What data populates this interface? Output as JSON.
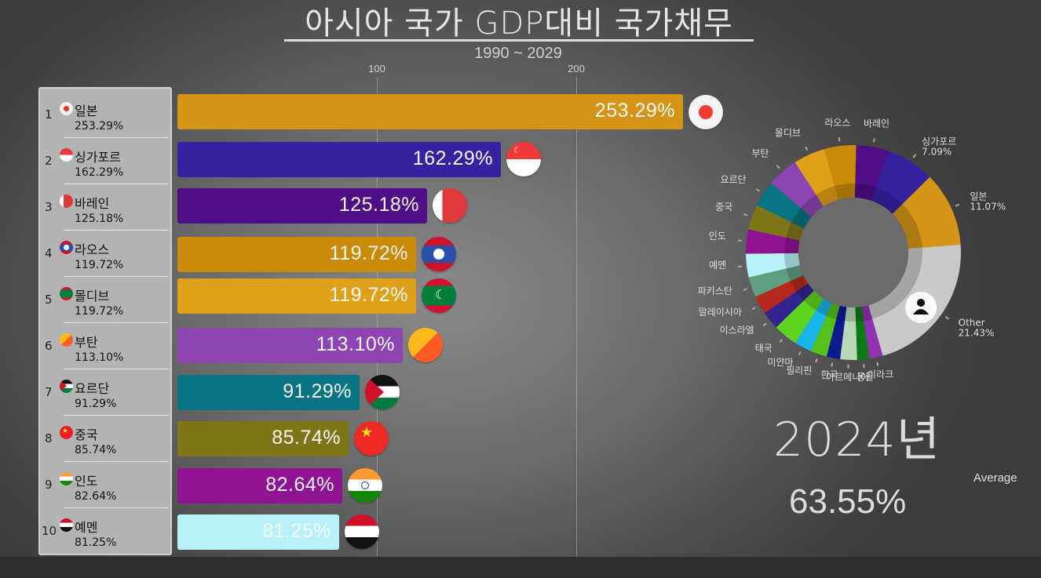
{
  "header": {
    "title": "아시아 국가 GDP대비 국가채무",
    "subtitle": "1990 ~ 2029"
  },
  "axis": {
    "ticks": [
      {
        "label": "100",
        "value": 100
      },
      {
        "label": "200",
        "value": 200
      }
    ]
  },
  "year_display": "2024년",
  "average": {
    "label": "Average",
    "value": "63.55%"
  },
  "ranking": [
    {
      "rank": "1",
      "name": "일본",
      "value_text": "253.29%",
      "value": 253.29,
      "color": "#d49416",
      "flag": "japan"
    },
    {
      "rank": "2",
      "name": "싱가포르",
      "value_text": "162.29%",
      "value": 162.29,
      "color": "#35229f",
      "flag": "singapore"
    },
    {
      "rank": "3",
      "name": "바레인",
      "value_text": "125.18%",
      "value": 125.18,
      "color": "#4f0d86",
      "flag": "bahrain"
    },
    {
      "rank": "4",
      "name": "라오스",
      "value_text": "119.72%",
      "value": 119.72,
      "color": "#c98b06",
      "flag": "laos"
    },
    {
      "rank": "5",
      "name": "몰디브",
      "value_text": "119.72%",
      "value": 119.72,
      "color": "#e0a11a",
      "flag": "maldives"
    },
    {
      "rank": "6",
      "name": "부탄",
      "value_text": "113.10%",
      "value": 113.1,
      "color": "#8f44b3",
      "flag": "bhutan"
    },
    {
      "rank": "7",
      "name": "요르단",
      "value_text": "91.29%",
      "value": 91.29,
      "color": "#067482",
      "flag": "jordan"
    },
    {
      "rank": "8",
      "name": "중국",
      "value_text": "85.74%",
      "value": 85.74,
      "color": "#7e7616",
      "flag": "china"
    },
    {
      "rank": "9",
      "name": "인도",
      "value_text": "82.64%",
      "value": 82.64,
      "color": "#8f1493",
      "flag": "india"
    },
    {
      "rank": "10",
      "name": "예멘",
      "value_text": "81.25%",
      "value": 81.25,
      "color": "#b8f2f8",
      "flag": "yemen"
    }
  ],
  "donut": {
    "labels_with_share": [
      {
        "name": "싱가포르",
        "share": "7.09%"
      },
      {
        "name": "일본",
        "share": "11.07%"
      },
      {
        "name": "Other",
        "share": "21.43%"
      }
    ],
    "segment_labels": [
      "바레인",
      "싱가포르",
      "일본",
      "Other",
      "이라크",
      "몽골",
      "아르메니아",
      "한국",
      "필리핀",
      "미얀마",
      "태국",
      "이스라엘",
      "말레이시아",
      "파키스탄",
      "예멘",
      "인도",
      "중국",
      "요르단",
      "부탄",
      "몰디브",
      "라오스"
    ]
  },
  "chart_data": [
    {
      "type": "bar",
      "title": "아시아 국가 GDP대비 국가채무",
      "subtitle": "1990 ~ 2029",
      "frame_year": "2024년",
      "orientation": "horizontal",
      "categories": [
        "일본",
        "싱가포르",
        "바레인",
        "라오스",
        "몰디브",
        "부탄",
        "요르단",
        "중국",
        "인도",
        "예멘"
      ],
      "values": [
        253.29,
        162.29,
        125.18,
        119.72,
        119.72,
        113.1,
        91.29,
        85.74,
        82.64,
        81.25
      ],
      "unit": "% of GDP",
      "xticks": [
        100,
        200
      ],
      "grid": true,
      "colors": [
        "#d49416",
        "#35229f",
        "#4f0d86",
        "#c98b06",
        "#e0a11a",
        "#8f44b3",
        "#067482",
        "#7e7616",
        "#8f1493",
        "#b8f2f8"
      ]
    },
    {
      "type": "pie",
      "variant": "donut",
      "categories": [
        "바레인",
        "싱가포르",
        "일본",
        "Other",
        "이라크",
        "몽골",
        "아르메니아",
        "한국",
        "필리핀",
        "미얀마",
        "태국",
        "이스라엘",
        "말레이시아",
        "파키스탄",
        "예멘",
        "인도",
        "중국",
        "요르단",
        "부탄",
        "몰디브",
        "라오스"
      ],
      "values": [
        4.89,
        7.09,
        11.07,
        21.43,
        2.0,
        1.8,
        2.5,
        2.0,
        2.4,
        2.6,
        3.6,
        2.7,
        2.7,
        3.0,
        3.5,
        3.6,
        3.7,
        3.9,
        4.6,
        4.7,
        4.7
      ],
      "labeled_shares": {
        "일본": 11.07,
        "싱가포르": 7.09,
        "Other": 21.43
      },
      "colors": [
        "#4f0d86",
        "#35229f",
        "#d49416",
        "#c9c9c9",
        "#8f33b0",
        "#0a7a14",
        "#b8d8b8",
        "#0a1a8f",
        "#55c21a",
        "#19b4e8",
        "#5fd41f",
        "#33238f",
        "#b52a1c",
        "#5f9e7f",
        "#b8f2f8",
        "#8f1493",
        "#7e7616",
        "#067482",
        "#8f44b3",
        "#e0a11a",
        "#c98b06"
      ],
      "start_angle": "top, clockwise"
    }
  ]
}
